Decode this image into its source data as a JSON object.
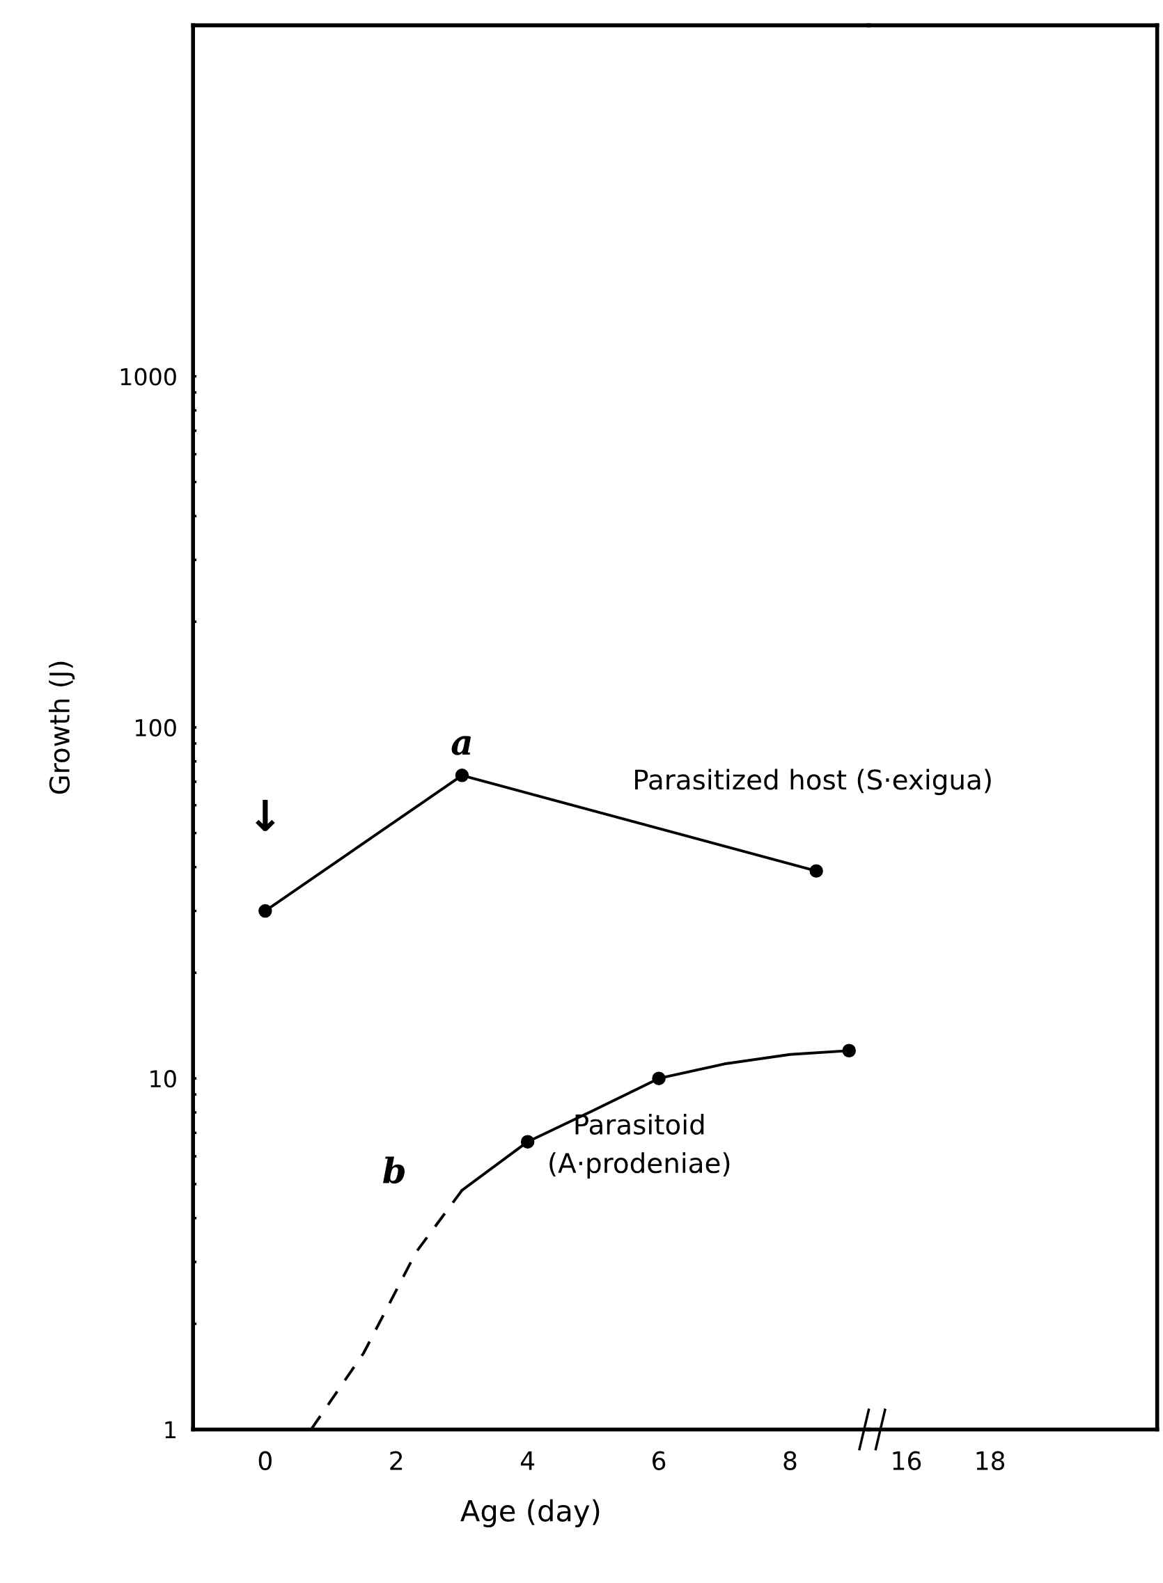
{
  "chart_data": [
    {
      "type": "line",
      "xlabel": "Age (day)",
      "ylabel": "Growth (J)",
      "log": "y",
      "grid": false,
      "legend": false,
      "xlim": [
        -1.1,
        9.2
      ],
      "xticks": [
        0,
        2,
        4,
        6,
        8
      ],
      "ylim": [
        1,
        10000
      ],
      "yticks": [
        1,
        {
          "value": 2,
          "label": null
        },
        {
          "value": 3,
          "label": null
        },
        {
          "value": 4,
          "label": null
        },
        {
          "value": 5,
          "label": null
        },
        {
          "value": 6,
          "label": null
        },
        {
          "value": 7,
          "label": null
        },
        {
          "value": 8,
          "label": null
        },
        {
          "value": 9,
          "label": null
        },
        10,
        {
          "value": 20,
          "label": null
        },
        {
          "value": 30,
          "label": null
        },
        {
          "value": 40,
          "label": null
        },
        {
          "value": 50,
          "label": null
        },
        {
          "value": 60,
          "label": null
        },
        {
          "value": 70,
          "label": null
        },
        {
          "value": 80,
          "label": null
        },
        {
          "value": 90,
          "label": null
        },
        100,
        {
          "value": 200,
          "label": null
        },
        {
          "value": 300,
          "label": null
        },
        {
          "value": 400,
          "label": null
        },
        {
          "value": 500,
          "label": null
        },
        {
          "value": 600,
          "label": null
        },
        {
          "value": 700,
          "label": null
        },
        {
          "value": 800,
          "label": null
        },
        {
          "value": 900,
          "label": null
        },
        1000
      ],
      "series": [
        {
          "color": "#000000",
          "marker": "circle",
          "line_style": "solid",
          "x": [
            0,
            3.0,
            8.4
          ],
          "values": [
            30,
            73,
            39
          ]
        },
        {
          "color": "#000000",
          "marker": "none",
          "line_style": "dashed",
          "x": [
            0.7,
            1.5,
            2.3,
            3.0
          ],
          "values": [
            1,
            1.65,
            3.2,
            4.8
          ]
        },
        {
          "color": "#000000",
          "marker": "none",
          "line_style": "solid",
          "x": [
            3.0,
            4,
            5,
            6,
            7,
            8,
            8.9
          ],
          "values": [
            4.8,
            6.6,
            8.1,
            10,
            11,
            11.7,
            12
          ]
        },
        {
          "type": "scatter",
          "color": "#000000",
          "marker": "circle",
          "x": [
            4,
            6,
            8.9
          ],
          "values": [
            6.6,
            10,
            12
          ]
        }
      ],
      "annotations": [
        {
          "text": "a",
          "x": 3.0,
          "y": 73
        },
        {
          "text": "b",
          "x": 3.0,
          "y": 4.8
        },
        {
          "text": "↓",
          "x": 0,
          "y": 30
        },
        {
          "text": "Parasitized host (S·exigua)",
          "x": 8.4,
          "y": 39
        },
        {
          "text": "Parasitoid\n(A·prodeniae)",
          "x": 6,
          "y": 10
        }
      ]
    },
    {
      "type": "line",
      "log": "y",
      "grid": false,
      "legend": false,
      "tick_labels": "x",
      "xlim": [
        15.1,
        22
      ],
      "xticks": [
        16,
        18
      ],
      "ylim": [
        1,
        10000
      ]
    }
  ]
}
